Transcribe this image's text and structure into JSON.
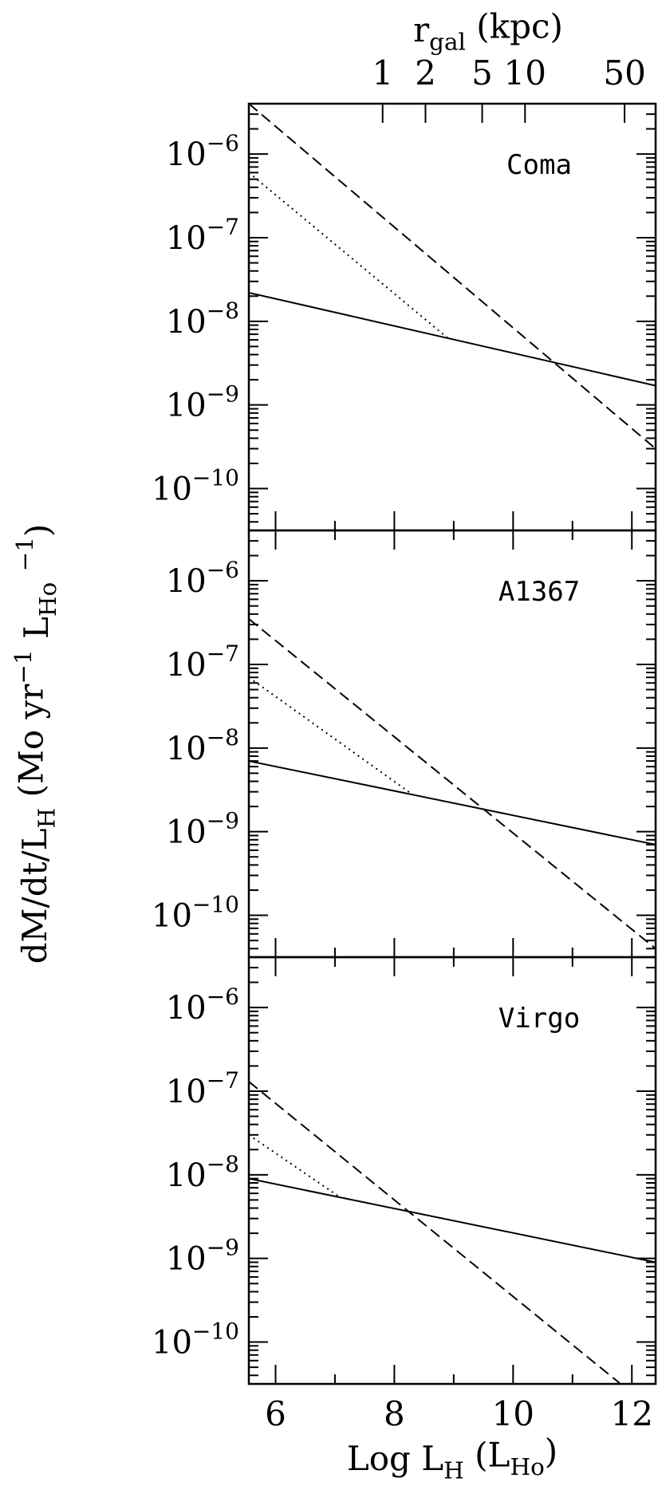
{
  "figure": {
    "ylabel_parts": [
      {
        "text": "dM/dt/L"
      },
      {
        "text": "H",
        "shift": "sub"
      },
      {
        "text": " (Mo yr"
      },
      {
        "text": "−1",
        "shift": "sup"
      },
      {
        "text": " L"
      },
      {
        "text": "Ho",
        "shift": "sub"
      },
      {
        "text": " "
      },
      {
        "text": "−1",
        "shift": "sup"
      },
      {
        "text": ")"
      }
    ],
    "xlabel_parts": [
      {
        "text": "Log L"
      },
      {
        "text": "H",
        "shift": "sub"
      },
      {
        "text": " (L"
      },
      {
        "text": "Ho",
        "shift": "sub"
      },
      {
        "text": ")"
      }
    ],
    "x2label_parts": [
      {
        "text": "r"
      },
      {
        "text": "gal",
        "shift": "sub"
      },
      {
        "text": " (kpc)"
      }
    ],
    "xlim": [
      5.55,
      12.4
    ],
    "xticks": [
      6,
      8,
      10,
      12
    ],
    "xminor_ticks": [
      7,
      9,
      11
    ],
    "x2lim": [
      0.115,
      82.6
    ],
    "x2log": true,
    "x2ticks": [
      1,
      2,
      5,
      10,
      50
    ]
  },
  "chart_data": [
    {
      "type": "line",
      "annotation": "Coma",
      "ylog": true,
      "log_minor_ticks": true,
      "ylim": [
        3.16e-11,
        4e-06
      ],
      "yticks": [
        {
          "value": 1e-06,
          "label": "10−6"
        },
        {
          "value": 1e-07,
          "label": "10−7"
        },
        {
          "value": 1e-08,
          "label": "10−8"
        },
        {
          "value": 1e-09,
          "label": "10−9"
        },
        {
          "value": 1e-10,
          "label": "10−10"
        }
      ],
      "series": [
        {
          "style": "solid",
          "color": "#000000",
          "x": [
            5.55,
            12.4
          ],
          "values": [
            2.2e-08,
            1.7e-09
          ]
        },
        {
          "style": "dashed",
          "color": "#000000",
          "x": [
            5.55,
            12.4
          ],
          "values": [
            4e-06,
            3e-10
          ]
        },
        {
          "style": "dotted",
          "color": "#000000",
          "x": [
            5.55,
            8.9
          ],
          "values": [
            6e-07,
            6.3e-09
          ]
        }
      ]
    },
    {
      "type": "line",
      "annotation": "A1367",
      "ylog": true,
      "log_minor_ticks": true,
      "ylim": [
        3.16e-11,
        4e-06
      ],
      "yticks": [
        {
          "value": 1e-06,
          "label": "10−6"
        },
        {
          "value": 1e-07,
          "label": "10−7"
        },
        {
          "value": 1e-08,
          "label": "10−8"
        },
        {
          "value": 1e-09,
          "label": "10−9"
        },
        {
          "value": 1e-10,
          "label": "10−10"
        }
      ],
      "series": [
        {
          "style": "solid",
          "color": "#000000",
          "x": [
            5.55,
            12.4
          ],
          "values": [
            7e-09,
            7e-10
          ]
        },
        {
          "style": "dashed",
          "color": "#000000",
          "x": [
            5.55,
            12.4
          ],
          "values": [
            3.5e-07,
            4e-11
          ]
        },
        {
          "style": "dotted",
          "color": "#000000",
          "x": [
            5.55,
            8.3
          ],
          "values": [
            7e-08,
            2.8e-09
          ]
        }
      ]
    },
    {
      "type": "line",
      "annotation": "Virgo",
      "ylog": true,
      "log_minor_ticks": true,
      "ylim": [
        3.16e-11,
        4e-06
      ],
      "yticks": [
        {
          "value": 1e-06,
          "label": "10−6"
        },
        {
          "value": 1e-07,
          "label": "10−7"
        },
        {
          "value": 1e-08,
          "label": "10−8"
        },
        {
          "value": 1e-09,
          "label": "10−9"
        },
        {
          "value": 1e-10,
          "label": "10−10"
        }
      ],
      "series": [
        {
          "style": "solid",
          "color": "#000000",
          "x": [
            5.55,
            12.4
          ],
          "values": [
            9e-09,
            9e-10
          ]
        },
        {
          "style": "dashed",
          "color": "#000000",
          "x": [
            5.55,
            11.8
          ],
          "values": [
            1.3e-07,
            3.2e-11
          ]
        },
        {
          "style": "dotted",
          "color": "#000000",
          "x": [
            5.55,
            7.1
          ],
          "values": [
            3e-08,
            5.3e-09
          ]
        }
      ]
    }
  ]
}
